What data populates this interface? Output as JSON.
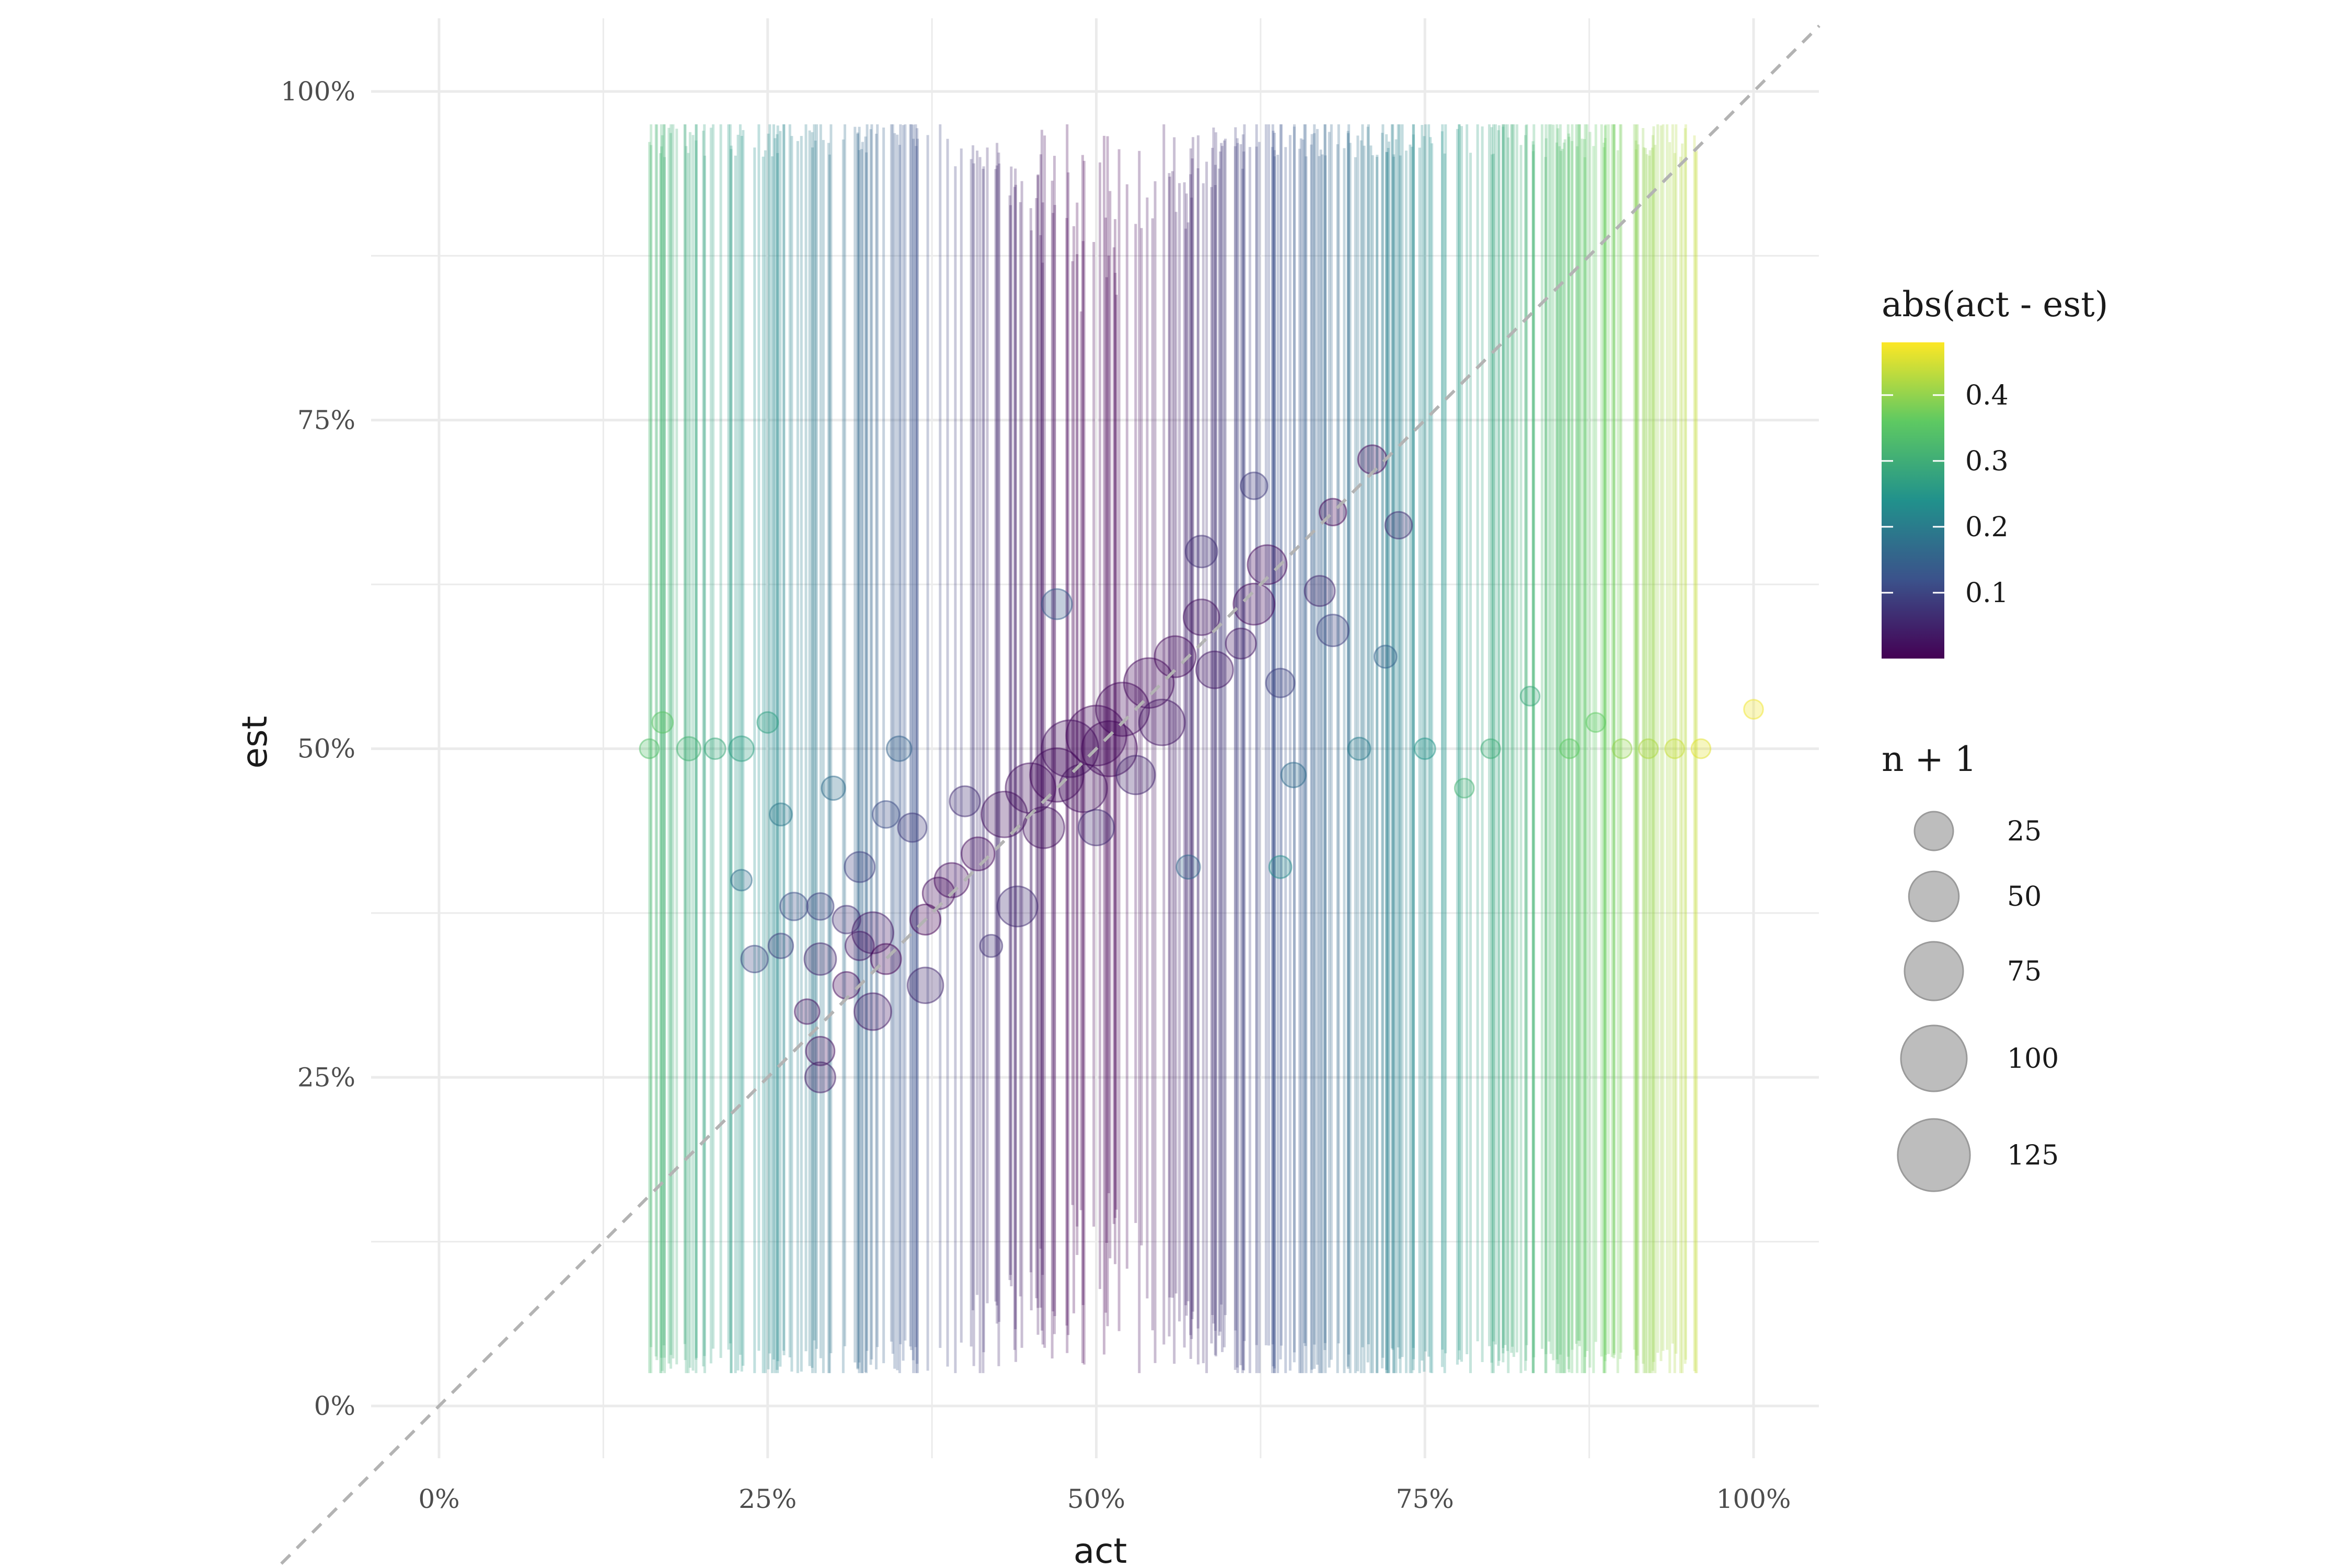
{
  "chart_data": {
    "type": "scatter",
    "xlabel": "act",
    "ylabel": "est",
    "xlim": [
      0,
      1
    ],
    "ylim": [
      0,
      1
    ],
    "x_ticks": [
      "0%",
      "25%",
      "50%",
      "75%",
      "100%"
    ],
    "y_ticks": [
      "0%",
      "25%",
      "50%",
      "75%",
      "100%"
    ],
    "x_tick_values": [
      0,
      0.25,
      0.5,
      0.75,
      1
    ],
    "y_tick_values": [
      0,
      0.25,
      0.5,
      0.75,
      1
    ],
    "grid": true,
    "reference_line": "y = x (dashed)",
    "color_legend": {
      "title": "abs(act - est)",
      "labels": [
        "0.4",
        "0.3",
        "0.2",
        "0.1"
      ],
      "values": [
        0.4,
        0.3,
        0.2,
        0.1
      ],
      "range": [
        0,
        0.48
      ],
      "colors": [
        "#440154",
        "#3b528b",
        "#21918c",
        "#5ec962",
        "#fde725"
      ],
      "placement": "right"
    },
    "size_legend": {
      "title": "n + 1",
      "labels": [
        "25",
        "50",
        "75",
        "100",
        "125"
      ],
      "values": [
        25,
        50,
        75,
        100,
        125
      ],
      "placement": "right"
    },
    "points": [
      {
        "act": 0.16,
        "est": 0.5,
        "n": 2
      },
      {
        "act": 0.17,
        "est": 0.52,
        "n": 3
      },
      {
        "act": 0.19,
        "est": 0.5,
        "n": 5
      },
      {
        "act": 0.21,
        "est": 0.5,
        "n": 3
      },
      {
        "act": 0.23,
        "est": 0.4,
        "n": 3
      },
      {
        "act": 0.23,
        "est": 0.5,
        "n": 6
      },
      {
        "act": 0.24,
        "est": 0.34,
        "n": 8
      },
      {
        "act": 0.25,
        "est": 0.52,
        "n": 3
      },
      {
        "act": 0.26,
        "est": 0.45,
        "n": 4
      },
      {
        "act": 0.26,
        "est": 0.35,
        "n": 6
      },
      {
        "act": 0.27,
        "est": 0.38,
        "n": 9
      },
      {
        "act": 0.28,
        "est": 0.3,
        "n": 6
      },
      {
        "act": 0.29,
        "est": 0.27,
        "n": 10
      },
      {
        "act": 0.29,
        "est": 0.25,
        "n": 12
      },
      {
        "act": 0.29,
        "est": 0.34,
        "n": 14
      },
      {
        "act": 0.29,
        "est": 0.38,
        "n": 8
      },
      {
        "act": 0.3,
        "est": 0.47,
        "n": 5
      },
      {
        "act": 0.31,
        "est": 0.37,
        "n": 9
      },
      {
        "act": 0.31,
        "est": 0.32,
        "n": 8
      },
      {
        "act": 0.32,
        "est": 0.35,
        "n": 10
      },
      {
        "act": 0.32,
        "est": 0.41,
        "n": 12
      },
      {
        "act": 0.33,
        "est": 0.3,
        "n": 22
      },
      {
        "act": 0.33,
        "est": 0.36,
        "n": 30
      },
      {
        "act": 0.34,
        "est": 0.34,
        "n": 12
      },
      {
        "act": 0.34,
        "est": 0.45,
        "n": 8
      },
      {
        "act": 0.35,
        "est": 0.5,
        "n": 6
      },
      {
        "act": 0.36,
        "est": 0.44,
        "n": 10
      },
      {
        "act": 0.37,
        "est": 0.32,
        "n": 20
      },
      {
        "act": 0.37,
        "est": 0.37,
        "n": 12
      },
      {
        "act": 0.38,
        "est": 0.39,
        "n": 14
      },
      {
        "act": 0.39,
        "est": 0.4,
        "n": 18
      },
      {
        "act": 0.4,
        "est": 0.46,
        "n": 12
      },
      {
        "act": 0.41,
        "est": 0.42,
        "n": 16
      },
      {
        "act": 0.42,
        "est": 0.35,
        "n": 4
      },
      {
        "act": 0.43,
        "est": 0.45,
        "n": 40
      },
      {
        "act": 0.44,
        "est": 0.38,
        "n": 28
      },
      {
        "act": 0.45,
        "est": 0.47,
        "n": 50
      },
      {
        "act": 0.46,
        "est": 0.44,
        "n": 30
      },
      {
        "act": 0.47,
        "est": 0.48,
        "n": 60
      },
      {
        "act": 0.47,
        "est": 0.61,
        "n": 12
      },
      {
        "act": 0.48,
        "est": 0.5,
        "n": 70
      },
      {
        "act": 0.49,
        "est": 0.47,
        "n": 45
      },
      {
        "act": 0.5,
        "est": 0.51,
        "n": 80
      },
      {
        "act": 0.5,
        "est": 0.44,
        "n": 20
      },
      {
        "act": 0.51,
        "est": 0.5,
        "n": 65
      },
      {
        "act": 0.52,
        "est": 0.53,
        "n": 60
      },
      {
        "act": 0.53,
        "est": 0.48,
        "n": 25
      },
      {
        "act": 0.54,
        "est": 0.55,
        "n": 50
      },
      {
        "act": 0.55,
        "est": 0.52,
        "n": 40
      },
      {
        "act": 0.56,
        "est": 0.57,
        "n": 30
      },
      {
        "act": 0.57,
        "est": 0.41,
        "n": 5
      },
      {
        "act": 0.58,
        "est": 0.65,
        "n": 14
      },
      {
        "act": 0.58,
        "est": 0.6,
        "n": 20
      },
      {
        "act": 0.59,
        "est": 0.56,
        "n": 22
      },
      {
        "act": 0.61,
        "est": 0.58,
        "n": 12
      },
      {
        "act": 0.62,
        "est": 0.7,
        "n": 8
      },
      {
        "act": 0.62,
        "est": 0.61,
        "n": 30
      },
      {
        "act": 0.63,
        "est": 0.64,
        "n": 26
      },
      {
        "act": 0.64,
        "est": 0.41,
        "n": 4
      },
      {
        "act": 0.64,
        "est": 0.55,
        "n": 10
      },
      {
        "act": 0.65,
        "est": 0.48,
        "n": 6
      },
      {
        "act": 0.67,
        "est": 0.62,
        "n": 12
      },
      {
        "act": 0.68,
        "est": 0.59,
        "n": 14
      },
      {
        "act": 0.68,
        "est": 0.68,
        "n": 8
      },
      {
        "act": 0.7,
        "est": 0.5,
        "n": 4
      },
      {
        "act": 0.71,
        "est": 0.72,
        "n": 10
      },
      {
        "act": 0.72,
        "est": 0.57,
        "n": 4
      },
      {
        "act": 0.73,
        "est": 0.67,
        "n": 8
      },
      {
        "act": 0.75,
        "est": 0.5,
        "n": 3
      },
      {
        "act": 0.78,
        "est": 0.47,
        "n": 2
      },
      {
        "act": 0.8,
        "est": 0.5,
        "n": 2
      },
      {
        "act": 0.83,
        "est": 0.54,
        "n": 2
      },
      {
        "act": 0.86,
        "est": 0.5,
        "n": 2
      },
      {
        "act": 0.88,
        "est": 0.52,
        "n": 2
      },
      {
        "act": 0.9,
        "est": 0.5,
        "n": 2
      },
      {
        "act": 0.92,
        "est": 0.5,
        "n": 2
      },
      {
        "act": 0.94,
        "est": 0.5,
        "n": 2
      },
      {
        "act": 0.96,
        "est": 0.5,
        "n": 2
      },
      {
        "act": 1.0,
        "est": 0.53,
        "n": 2
      }
    ]
  }
}
